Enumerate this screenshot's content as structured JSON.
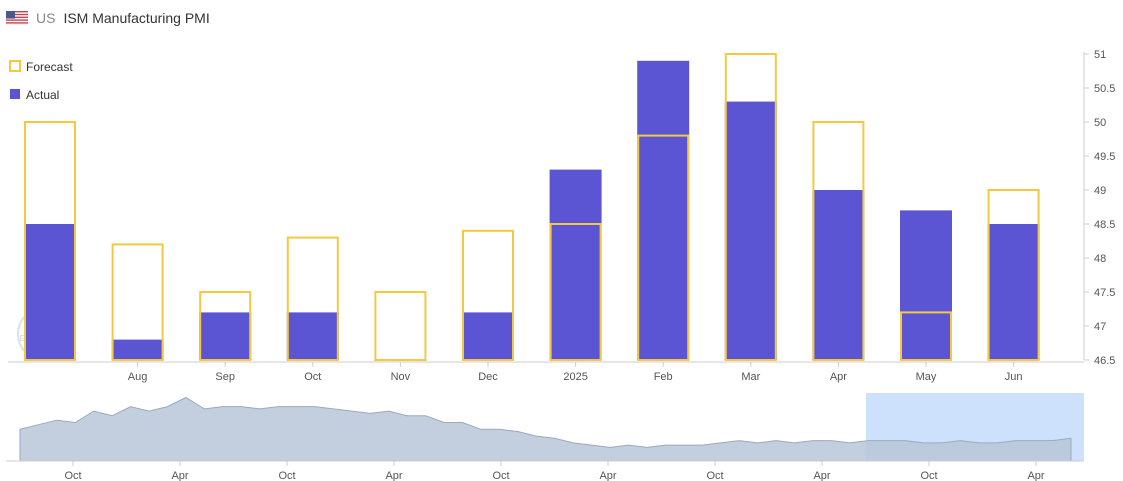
{
  "header": {
    "country": "US",
    "title": "ISM Manufacturing PMI"
  },
  "colors": {
    "actual": "#5b54d3",
    "forecast": "#f5c842",
    "navigator_fill": "#b8c6d8",
    "navigator_selection": "#c4dcfb"
  },
  "legend": {
    "forecast": "Forecast",
    "actual": "Actual"
  },
  "watermark": "TRADING ECONOMICS",
  "chart_data": {
    "type": "bar",
    "title": "ISM Manufacturing PMI",
    "categories": [
      "",
      "Aug",
      "Sep",
      "Oct",
      "Nov",
      "Dec",
      "2025",
      "Feb",
      "Mar",
      "Apr",
      "May",
      "Jun"
    ],
    "series": [
      {
        "name": "Actual",
        "values": [
          48.5,
          46.8,
          47.2,
          47.2,
          46.5,
          47.2,
          49.3,
          50.9,
          50.3,
          49.0,
          48.7,
          48.5
        ]
      },
      {
        "name": "Forecast",
        "values": [
          50.0,
          48.2,
          47.5,
          48.3,
          47.5,
          48.4,
          48.5,
          49.8,
          51.0,
          50.0,
          47.2,
          49.0
        ]
      }
    ],
    "ylim": [
      46.5,
      51
    ],
    "yticks": [
      "51",
      "50.5",
      "50",
      "49.5",
      "49",
      "48.5",
      "48",
      "47.5",
      "47",
      "46.5"
    ],
    "y_axis_side": "right",
    "legend_position": "top-left",
    "navigator": {
      "x_labels": [
        "Oct",
        "Apr",
        "Oct",
        "Apr",
        "Oct",
        "Apr",
        "Oct",
        "Apr",
        "Oct",
        "Apr"
      ],
      "values": [
        34,
        36,
        38,
        37,
        42,
        40,
        44,
        42,
        44,
        48,
        43,
        44,
        44,
        43,
        44,
        44,
        44,
        43,
        42,
        41,
        42,
        40,
        40,
        37,
        37,
        34,
        34,
        33,
        31,
        30,
        28,
        27,
        26,
        27,
        26,
        27,
        27,
        27,
        28,
        29,
        28,
        29,
        28,
        29,
        29,
        28,
        29,
        29,
        29,
        28,
        28,
        29,
        28,
        28,
        29,
        29,
        29,
        30
      ]
    }
  }
}
